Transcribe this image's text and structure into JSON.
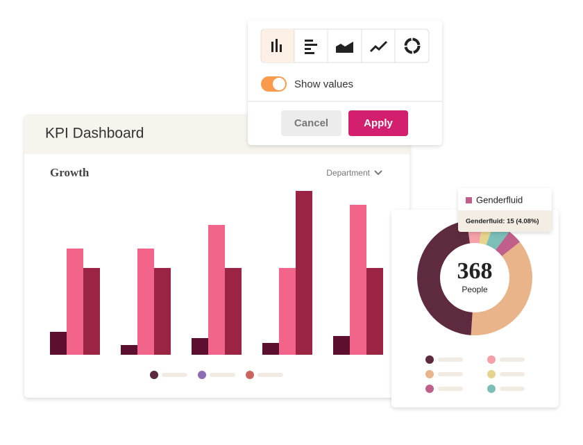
{
  "popover": {
    "toggle_label": "Show values",
    "show_values": true,
    "cancel": "Cancel",
    "apply": "Apply"
  },
  "dashboard": {
    "title": "KPI Dashboard"
  },
  "chart_data": [
    {
      "type": "bar",
      "title": "Growth",
      "filter": "Department",
      "categories": [
        null,
        null,
        null,
        null,
        null
      ],
      "ylim": [
        0,
        240
      ],
      "series": [
        {
          "color": "#5c0f2e",
          "values": [
            33,
            14,
            24,
            17,
            27
          ]
        },
        {
          "color": "#f2648a",
          "values": [
            153,
            153,
            187,
            125,
            216
          ]
        },
        {
          "color": "#9b2445",
          "values": [
            125,
            125,
            125,
            236,
            125
          ]
        }
      ]
    },
    {
      "type": "pie",
      "total": 368,
      "total_label": "People",
      "categories": [
        null,
        null,
        null,
        "Genderfluid",
        null,
        null
      ],
      "values": [
        16,
        12,
        18,
        15,
        135,
        172
      ],
      "colors": [
        "#f4a1a8",
        "#e6d48e",
        "#7bbfb8",
        "#c0608a",
        "#e9b48a",
        "#5e2a40"
      ],
      "tooltip": "Genderfluid: 15 (4.08%)"
    }
  ]
}
